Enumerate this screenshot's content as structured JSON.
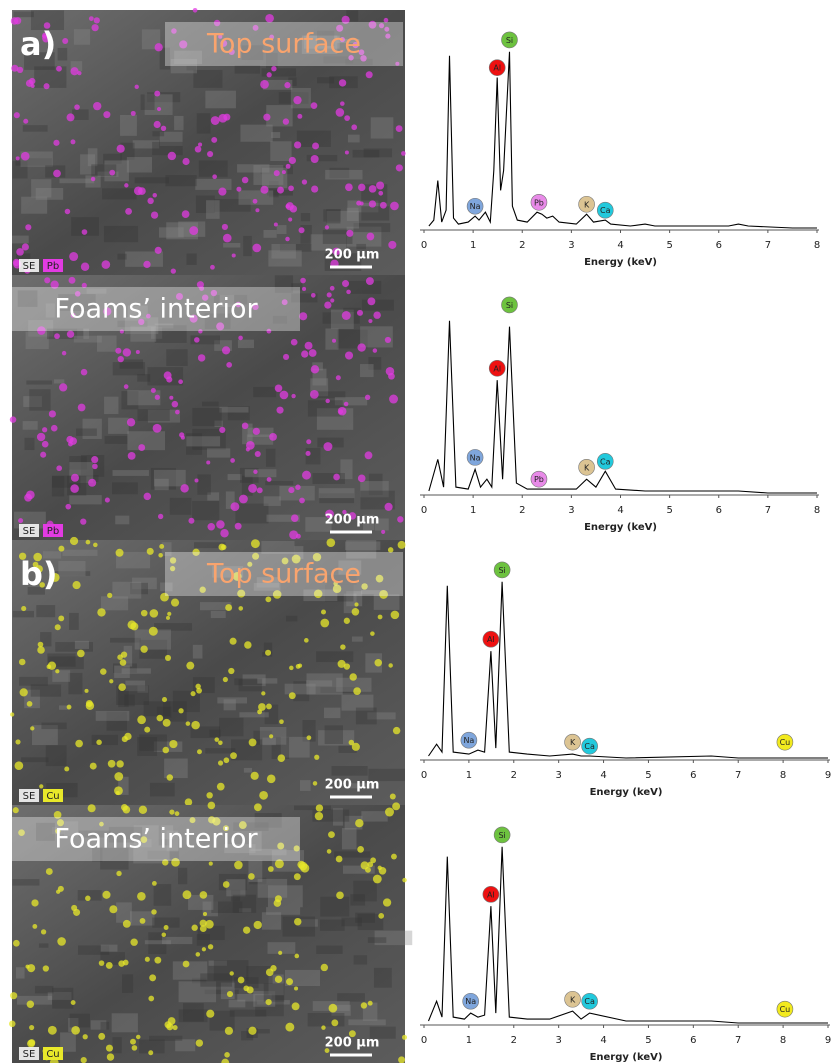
{
  "images": [
    {
      "label": "a)",
      "caption": "Top surface",
      "caption_color": "#f9a46e",
      "scale": "200 µm",
      "channels": [
        "SE",
        "Pb"
      ],
      "dot_color": "#e23be2"
    },
    {
      "caption": "Foams’ interior",
      "caption_color": "#ffffff",
      "scale": "200 µm",
      "channels": [
        "SE",
        "Pb"
      ],
      "dot_color": "#e23be2"
    },
    {
      "label": "b)",
      "caption": "Top surface",
      "caption_color": "#f9a46e",
      "scale": "200 µm",
      "channels": [
        "SE",
        "Cu"
      ],
      "dot_color": "#e8e82a"
    },
    {
      "caption": "Foams’ interior",
      "caption_color": "#ffffff",
      "scale": "200 µm",
      "channels": [
        "SE",
        "Cu"
      ],
      "dot_color": "#e8e82a"
    }
  ],
  "chart_data": [
    {
      "type": "line",
      "xlabel": "Energy (keV)",
      "xlim": [
        0,
        8
      ],
      "xticks": [
        0,
        1,
        2,
        3,
        4,
        5,
        6,
        7,
        8
      ],
      "ylim": [
        0,
        100
      ],
      "color": "#000000",
      "x": [
        0.1,
        0.2,
        0.28,
        0.36,
        0.45,
        0.52,
        0.6,
        0.7,
        0.9,
        1.04,
        1.12,
        1.25,
        1.35,
        1.42,
        1.49,
        1.56,
        1.62,
        1.68,
        1.74,
        1.8,
        1.9,
        2.1,
        2.3,
        2.4,
        2.5,
        2.62,
        2.75,
        3.1,
        3.31,
        3.45,
        3.69,
        3.8,
        4.2,
        4.5,
        4.7,
        5.5,
        6.2,
        6.4,
        6.6,
        7.5,
        8
      ],
      "values": [
        2,
        5,
        25,
        4,
        10,
        88,
        6,
        3,
        4,
        7,
        5,
        9,
        4,
        30,
        77,
        20,
        30,
        60,
        90,
        12,
        5,
        4,
        9,
        8,
        6,
        7,
        4,
        3,
        8,
        4,
        5,
        3,
        2,
        3,
        2,
        2,
        2,
        3,
        2,
        1,
        1
      ],
      "annotations": [
        {
          "text": "Na",
          "x": 1.04,
          "y": 12,
          "color": "#7fa6dc"
        },
        {
          "text": "Al",
          "x": 1.49,
          "y": 82,
          "color": "#ee1111"
        },
        {
          "text": "Si",
          "x": 1.74,
          "y": 96,
          "color": "#6dc23f"
        },
        {
          "text": "Pb",
          "x": 2.34,
          "y": 14,
          "color": "#e88ae8"
        },
        {
          "text": "K",
          "x": 3.31,
          "y": 13,
          "color": "#dcc493"
        },
        {
          "text": "Ca",
          "x": 3.69,
          "y": 10,
          "color": "#22c9dc"
        }
      ]
    },
    {
      "type": "line",
      "xlabel": "Energy (keV)",
      "xlim": [
        0,
        8
      ],
      "xticks": [
        0,
        1,
        2,
        3,
        4,
        5,
        6,
        7,
        8
      ],
      "ylim": [
        0,
        100
      ],
      "color": "#000000",
      "x": [
        0.1,
        0.28,
        0.4,
        0.52,
        0.65,
        0.9,
        1.04,
        1.15,
        1.28,
        1.38,
        1.49,
        1.6,
        1.74,
        1.88,
        2.1,
        2.4,
        2.8,
        3.1,
        3.31,
        3.5,
        3.69,
        3.9,
        4.5,
        5.5,
        6.4,
        7,
        8
      ],
      "values": [
        2,
        18,
        4,
        88,
        4,
        3,
        13,
        4,
        8,
        4,
        58,
        8,
        85,
        6,
        3,
        3,
        3,
        3,
        8,
        4,
        12,
        3,
        2,
        2,
        2,
        1,
        1
      ],
      "annotations": [
        {
          "text": "Na",
          "x": 1.04,
          "y": 19,
          "color": "#7fa6dc"
        },
        {
          "text": "Al",
          "x": 1.49,
          "y": 64,
          "color": "#ee1111"
        },
        {
          "text": "Si",
          "x": 1.74,
          "y": 96,
          "color": "#6dc23f"
        },
        {
          "text": "Pb",
          "x": 2.34,
          "y": 8,
          "color": "#e88ae8"
        },
        {
          "text": "K",
          "x": 3.31,
          "y": 14,
          "color": "#dcc493"
        },
        {
          "text": "Ca",
          "x": 3.69,
          "y": 17,
          "color": "#22c9dc"
        }
      ]
    },
    {
      "type": "line",
      "xlabel": "Energy (keV)",
      "xlim": [
        0,
        9
      ],
      "xticks": [
        0,
        1,
        2,
        3,
        4,
        5,
        6,
        7,
        8,
        9
      ],
      "ylim": [
        0,
        100
      ],
      "color": "#000000",
      "x": [
        0.1,
        0.28,
        0.4,
        0.52,
        0.65,
        1.0,
        1.2,
        1.35,
        1.49,
        1.6,
        1.74,
        1.9,
        2.3,
        2.8,
        3.31,
        3.5,
        3.69,
        4.5,
        6.4,
        7,
        8.04,
        9
      ],
      "values": [
        2,
        8,
        4,
        88,
        4,
        3,
        5,
        4,
        55,
        6,
        90,
        4,
        3,
        2,
        3,
        2,
        2,
        1,
        2,
        1,
        1,
        1
      ],
      "annotations": [
        {
          "text": "Na",
          "x": 1.0,
          "y": 10,
          "color": "#7fa6dc"
        },
        {
          "text": "Al",
          "x": 1.49,
          "y": 61,
          "color": "#ee1111"
        },
        {
          "text": "Si",
          "x": 1.74,
          "y": 96,
          "color": "#6dc23f"
        },
        {
          "text": "K",
          "x": 3.31,
          "y": 9,
          "color": "#dcc493"
        },
        {
          "text": "Ca",
          "x": 3.69,
          "y": 7,
          "color": "#22c9dc"
        },
        {
          "text": "Cu",
          "x": 8.04,
          "y": 9,
          "color": "#f2ea1e"
        }
      ]
    },
    {
      "type": "line",
      "xlabel": "Energy (keV)",
      "xlim": [
        0,
        9
      ],
      "xticks": [
        0,
        1,
        2,
        3,
        4,
        5,
        6,
        7,
        8,
        9
      ],
      "ylim": [
        0,
        100
      ],
      "color": "#000000",
      "x": [
        0.1,
        0.28,
        0.4,
        0.52,
        0.65,
        0.9,
        1.04,
        1.2,
        1.35,
        1.49,
        1.6,
        1.74,
        1.9,
        2.3,
        2.8,
        3.31,
        3.5,
        3.69,
        4.5,
        6.4,
        7,
        8.04,
        9
      ],
      "values": [
        2,
        12,
        4,
        85,
        4,
        3,
        6,
        4,
        5,
        60,
        6,
        90,
        4,
        3,
        3,
        7,
        3,
        6,
        2,
        2,
        1,
        1,
        1
      ],
      "annotations": [
        {
          "text": "Na",
          "x": 1.04,
          "y": 12,
          "color": "#7fa6dc"
        },
        {
          "text": "Al",
          "x": 1.49,
          "y": 66,
          "color": "#ee1111"
        },
        {
          "text": "Si",
          "x": 1.74,
          "y": 96,
          "color": "#6dc23f"
        },
        {
          "text": "K",
          "x": 3.31,
          "y": 13,
          "color": "#dcc493"
        },
        {
          "text": "Ca",
          "x": 3.69,
          "y": 12,
          "color": "#22c9dc"
        },
        {
          "text": "Cu",
          "x": 8.04,
          "y": 8,
          "color": "#f2ea1e"
        }
      ]
    }
  ]
}
